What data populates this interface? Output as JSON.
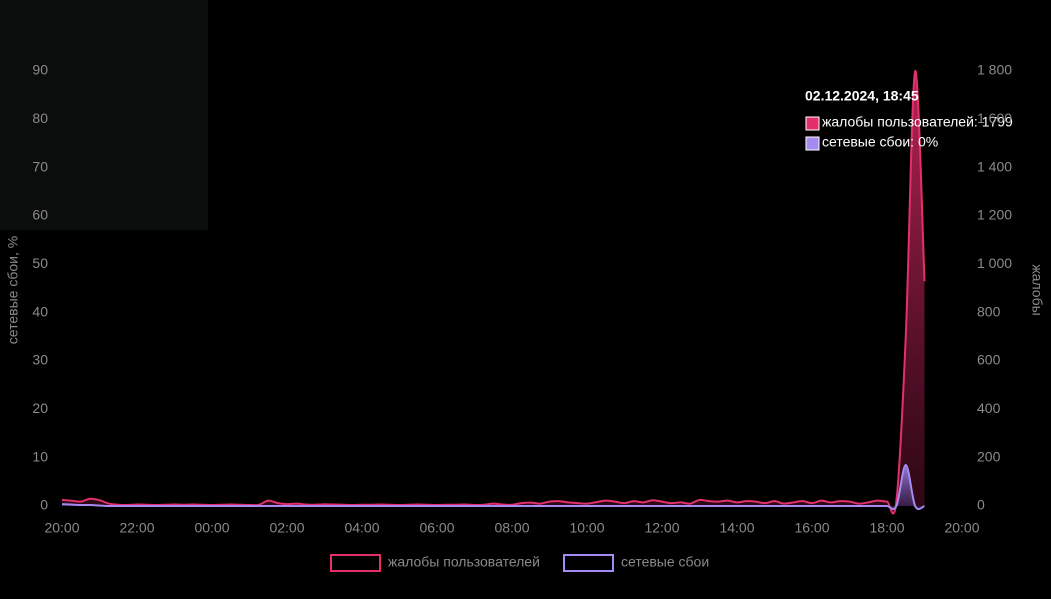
{
  "chart_data": {
    "type": "area",
    "x": [
      "20:00",
      "20:15",
      "20:30",
      "20:45",
      "21:00",
      "21:15",
      "21:30",
      "21:45",
      "22:00",
      "22:15",
      "22:30",
      "22:45",
      "23:00",
      "23:15",
      "23:30",
      "23:45",
      "00:00",
      "00:15",
      "00:30",
      "00:45",
      "01:00",
      "01:15",
      "01:30",
      "01:45",
      "02:00",
      "02:15",
      "02:30",
      "02:45",
      "03:00",
      "03:15",
      "03:30",
      "03:45",
      "04:00",
      "04:15",
      "04:30",
      "04:45",
      "05:00",
      "05:15",
      "05:30",
      "05:45",
      "06:00",
      "06:15",
      "06:30",
      "06:45",
      "07:00",
      "07:15",
      "07:30",
      "07:45",
      "08:00",
      "08:15",
      "08:30",
      "08:45",
      "09:00",
      "09:15",
      "09:30",
      "09:45",
      "10:00",
      "10:15",
      "10:30",
      "10:45",
      "11:00",
      "11:15",
      "11:30",
      "11:45",
      "12:00",
      "12:15",
      "12:30",
      "12:45",
      "13:00",
      "13:15",
      "13:30",
      "13:45",
      "14:00",
      "14:15",
      "14:30",
      "14:45",
      "15:00",
      "15:15",
      "15:30",
      "15:45",
      "16:00",
      "16:15",
      "16:30",
      "16:45",
      "17:00",
      "17:15",
      "17:30",
      "17:45",
      "18:00",
      "18:15",
      "18:30",
      "18:45",
      "19:00"
    ],
    "series": [
      {
        "name": "жалобы пользователей",
        "color": "#e3306c",
        "axis": "y2",
        "values": [
          25,
          22,
          18,
          30,
          24,
          10,
          5,
          4,
          6,
          5,
          4,
          5,
          6,
          5,
          6,
          5,
          4,
          5,
          6,
          5,
          4,
          5,
          22,
          12,
          8,
          10,
          6,
          5,
          7,
          6,
          5,
          4,
          5,
          5,
          6,
          5,
          4,
          5,
          6,
          5,
          4,
          5,
          5,
          6,
          4,
          5,
          10,
          6,
          5,
          12,
          14,
          10,
          18,
          20,
          15,
          12,
          10,
          16,
          22,
          18,
          12,
          20,
          15,
          24,
          18,
          12,
          15,
          10,
          25,
          20,
          18,
          22,
          15,
          20,
          18,
          12,
          20,
          10,
          15,
          20,
          12,
          22,
          15,
          20,
          18,
          10,
          15,
          22,
          18,
          20,
          700,
          1799,
          930
        ]
      },
      {
        "name": "сетевые сбои",
        "color": "#a58af0",
        "values": [
          0.4,
          0.3,
          0.2,
          0.2,
          0.1,
          0,
          0,
          0,
          0,
          0,
          0,
          0,
          0,
          0,
          0,
          0,
          0,
          0,
          0,
          0,
          0,
          0,
          0,
          0,
          0,
          0,
          0,
          0,
          0,
          0,
          0,
          0,
          0,
          0,
          0,
          0,
          0,
          0,
          0,
          0,
          0,
          0,
          0,
          0,
          0,
          0,
          0,
          0,
          0,
          0,
          0,
          0,
          0,
          0,
          0,
          0,
          0,
          0,
          0,
          0,
          0,
          0,
          0,
          0,
          0,
          0,
          0,
          0,
          0,
          0,
          0,
          0,
          0,
          0,
          0,
          0,
          0,
          0,
          0,
          0,
          0,
          0,
          0,
          0,
          0,
          0,
          0,
          0,
          0,
          0,
          8.5,
          0,
          0
        ]
      }
    ],
    "xticks": [
      "20:00",
      "22:00",
      "00:00",
      "02:00",
      "04:00",
      "06:00",
      "08:00",
      "10:00",
      "12:00",
      "14:00",
      "16:00",
      "18:00",
      "20:00"
    ],
    "ylabel": "сетевые сбои, %",
    "ylim": [
      0,
      90
    ],
    "yticks": [
      0,
      10,
      20,
      30,
      40,
      50,
      60,
      70,
      80,
      90
    ],
    "y2label": "жалобы",
    "y2lim": [
      0,
      1800
    ],
    "y2ticks": [
      0,
      200,
      400,
      600,
      800,
      {
        "value": 1000,
        "label": "1 000"
      },
      {
        "value": 1200,
        "label": "1 200"
      },
      {
        "value": 1400,
        "label": "1 400"
      },
      {
        "value": 1600,
        "label": "1 600"
      },
      {
        "value": 1800,
        "label": "1 800"
      }
    ],
    "tooltip": {
      "title": "02.12.2024, 18:45",
      "items": [
        "жалобы пользователей: 1799",
        "сетевые сбои: 0%"
      ]
    }
  }
}
